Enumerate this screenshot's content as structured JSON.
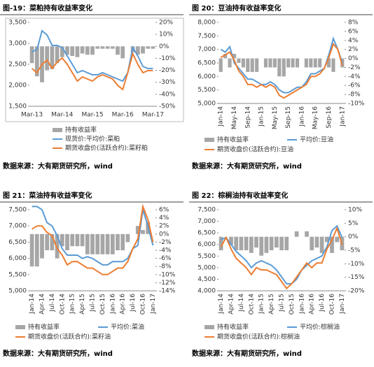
{
  "chart_data": [
    {
      "type": "combo",
      "title": "图-19：菜粕持有收益率变化",
      "source": "数据来源：大有期货研究所，wind",
      "categories": [
        "Mar-13",
        null,
        null,
        null,
        null,
        null,
        "Mar-14",
        null,
        null,
        null,
        null,
        null,
        "Mar-15",
        null,
        null,
        null,
        null,
        null,
        "Mar-16",
        null,
        null,
        null,
        null,
        null,
        "Mar-17"
      ],
      "ylim": [
        1500,
        3500
      ],
      "yticks": [
        {
          "value": 1500,
          "label": "1,500"
        },
        {
          "value": 2000,
          "label": "2,000"
        },
        {
          "value": 2500,
          "label": "2,500"
        },
        {
          "value": 3000,
          "label": "3,000"
        },
        {
          "value": 3500,
          "label": "3,500"
        }
      ],
      "y2lim": [
        -50,
        20
      ],
      "y2ticks": [
        {
          "value": -50,
          "label": "-50%"
        },
        {
          "value": -40,
          "label": "-40%"
        },
        {
          "value": -30,
          "label": "-30%"
        },
        {
          "value": -20,
          "label": "-20%"
        },
        {
          "value": -10,
          "label": "-10%"
        },
        {
          "value": 0,
          "label": "0%"
        },
        {
          "value": 10,
          "label": "10%"
        },
        {
          "value": 20,
          "label": "20%"
        }
      ],
      "series": [
        {
          "name": "持有收益率",
          "color": "#a6a6a6",
          "axis": "y2",
          "values": [
            -14,
            -25,
            -30,
            -20,
            -19,
            -14,
            -9,
            -7,
            -8,
            -9,
            -6,
            -7,
            -7,
            -2,
            -2,
            -2,
            -2,
            -7,
            -10,
            0,
            -5,
            -7,
            -6,
            -2,
            -2
          ]
        },
        {
          "name": "现货价:平均价:菜粕",
          "color": "#5b9bd5",
          "values": [
            2800,
            2850,
            3300,
            3200,
            2950,
            2950,
            2900,
            2700,
            2500,
            2300,
            2350,
            2300,
            2250,
            2250,
            2300,
            2250,
            2200,
            2150,
            2100,
            2300,
            2900,
            2700,
            2450,
            2400,
            2400
          ]
        },
        {
          "name": "期货收盘价(活跃合约):菜籽粕",
          "color": "#ed7d31",
          "values": [
            2400,
            2300,
            2500,
            2600,
            2400,
            2550,
            2650,
            2500,
            2300,
            2100,
            2200,
            2150,
            2100,
            2200,
            2250,
            2200,
            2150,
            2000,
            1900,
            2300,
            2750,
            2500,
            2300,
            2350,
            2350
          ]
        }
      ]
    },
    {
      "type": "combo",
      "title": "图 20：豆油持有收益率变化",
      "source": "数据来源：大有期货研究所，wind",
      "categories": [
        "Jan-14",
        null,
        null,
        "May-14",
        null,
        null,
        "Sep-14",
        null,
        null,
        "Jan-15",
        null,
        null,
        "May-15",
        null,
        null,
        "Sep-15",
        null,
        null,
        "Jan-16",
        null,
        null,
        "May-16",
        null,
        null,
        "Sep-16",
        null,
        null,
        "Jan-17"
      ],
      "ylim": [
        5000,
        8000
      ],
      "yticks": [
        {
          "value": 5000,
          "label": "5,000"
        },
        {
          "value": 5500,
          "label": "5,500"
        },
        {
          "value": 6000,
          "label": "6,000"
        },
        {
          "value": 6500,
          "label": "6,500"
        },
        {
          "value": 7000,
          "label": "7,000"
        },
        {
          "value": 7500,
          "label": "7,500"
        },
        {
          "value": 8000,
          "label": "8,000"
        }
      ],
      "y2lim": [
        -10,
        8
      ],
      "y2ticks": [
        {
          "value": -10,
          "label": "-10%"
        },
        {
          "value": -8,
          "label": "-8%"
        },
        {
          "value": -6,
          "label": "-6%"
        },
        {
          "value": -4,
          "label": "-4%"
        },
        {
          "value": -2,
          "label": "-2%"
        },
        {
          "value": 0,
          "label": "0%"
        },
        {
          "value": 2,
          "label": "2%"
        },
        {
          "value": 4,
          "label": "4%"
        },
        {
          "value": 6,
          "label": "6%"
        },
        {
          "value": 8,
          "label": "8%"
        }
      ],
      "series": [
        {
          "name": "持有收益率",
          "color": "#a6a6a6",
          "axis": "y2",
          "values": [
            -3,
            1,
            -2,
            1,
            -1,
            -2,
            -3,
            -3,
            -3,
            0,
            -2,
            -2,
            -2,
            -4,
            -4,
            -2,
            -2,
            -2,
            0,
            -2,
            -2,
            -2,
            -2,
            0,
            -2,
            -3,
            0,
            -2
          ]
        },
        {
          "name": "平均价:豆油",
          "color": "#5b9bd5",
          "values": [
            7000,
            6900,
            7100,
            6500,
            6300,
            6100,
            5900,
            5900,
            5800,
            5700,
            5700,
            5800,
            5700,
            5500,
            5400,
            5400,
            5500,
            5600,
            5600,
            5800,
            6100,
            6100,
            6200,
            6300,
            6800,
            7400,
            7000,
            6500
          ]
        },
        {
          "name": "期货收盘价(活跃合约):豆油",
          "color": "#ed7d31",
          "values": [
            6700,
            6800,
            6900,
            6600,
            6200,
            6000,
            5700,
            5700,
            5600,
            5700,
            5600,
            5700,
            5600,
            5300,
            5200,
            5300,
            5400,
            5500,
            5600,
            5700,
            6000,
            6000,
            6100,
            6300,
            6700,
            7200,
            7000,
            6400
          ]
        }
      ]
    },
    {
      "type": "combo",
      "title": "图 21：菜油持有收益率变化",
      "source": "数据来源：大有期货研究所，wind",
      "categories": [
        "Jan-14",
        null,
        "Apr-14",
        null,
        "Jul-14",
        null,
        "Oct-14",
        null,
        "Jan-15",
        null,
        "Apr-15",
        null,
        "Jul-15",
        null,
        "Oct-15",
        null,
        "Jan-16",
        null,
        "Apr-16",
        null,
        "Jul-16",
        null,
        "Oct-16",
        null,
        "Jan-17"
      ],
      "ylim": [
        5000,
        7500
      ],
      "yticks": [
        {
          "value": 5000,
          "label": "5,000"
        },
        {
          "value": 5500,
          "label": "5,500"
        },
        {
          "value": 6000,
          "label": "6,000"
        },
        {
          "value": 6500,
          "label": "6,500"
        },
        {
          "value": 7000,
          "label": "7,000"
        },
        {
          "value": 7500,
          "label": "7,500"
        }
      ],
      "y2lim": [
        -14,
        6
      ],
      "y2ticks": [
        {
          "value": -14,
          "label": "-14%"
        },
        {
          "value": -12,
          "label": "-12%"
        },
        {
          "value": -10,
          "label": "-10%"
        },
        {
          "value": -8,
          "label": "-8%"
        },
        {
          "value": -6,
          "label": "-6%"
        },
        {
          "value": -4,
          "label": "-4%"
        },
        {
          "value": -2,
          "label": "-2%"
        },
        {
          "value": 0,
          "label": "0%"
        },
        {
          "value": 2,
          "label": "2%"
        },
        {
          "value": 4,
          "label": "4%"
        },
        {
          "value": 6,
          "label": "6%"
        }
      ],
      "series": [
        {
          "name": "持有收益率",
          "color": "#a6a6a6",
          "axis": "y2",
          "values": [
            -8,
            -8,
            -6,
            -4,
            -4,
            -6,
            -3,
            -4,
            -3,
            -3,
            -3,
            -5,
            -5,
            -5,
            -5,
            -5,
            -5,
            -4,
            -4,
            -2,
            0,
            2,
            1,
            3,
            0
          ]
        },
        {
          "name": "平均价:菜油",
          "color": "#5b9bd5",
          "values": [
            7600,
            7600,
            7500,
            7100,
            7000,
            6700,
            6300,
            6100,
            6100,
            6100,
            6000,
            6050,
            6000,
            5900,
            5800,
            5800,
            5900,
            5900,
            5900,
            6000,
            6300,
            6400,
            7500,
            7000,
            6400
          ]
        },
        {
          "name": "期货收盘价(活跃合约):菜籽油",
          "color": "#ed7d31",
          "values": [
            6900,
            7000,
            7000,
            6800,
            6700,
            6300,
            6100,
            5800,
            5900,
            5900,
            5800,
            5700,
            5700,
            5600,
            5500,
            5500,
            5600,
            5700,
            5700,
            5900,
            6300,
            6600,
            7600,
            7200,
            6500
          ]
        }
      ]
    },
    {
      "type": "combo",
      "title": "图 22：棕榈油持有收益率变化",
      "source": "数据来源：大有期货研究所，wind",
      "categories": [
        "Jan-14",
        null,
        "Apr-14",
        null,
        "Jul-14",
        null,
        "Oct-14",
        null,
        "Jan-15",
        null,
        "Apr-15",
        null,
        "Jul-15",
        null,
        "Oct-15",
        null,
        "Jan-16",
        null,
        "Apr-16",
        null,
        "Jul-16",
        null,
        "Oct-16",
        null,
        "Jan-17"
      ],
      "ylim": [
        4000,
        7500
      ],
      "yticks": [
        {
          "value": 4000,
          "label": "4,000"
        },
        {
          "value": 4500,
          "label": "4,500"
        },
        {
          "value": 5000,
          "label": "5,000"
        },
        {
          "value": 5500,
          "label": "5,500"
        },
        {
          "value": 6000,
          "label": "6,000"
        },
        {
          "value": 6500,
          "label": "6,500"
        },
        {
          "value": 7000,
          "label": "7,000"
        },
        {
          "value": 7500,
          "label": "7,500"
        }
      ],
      "y2lim": [
        -20,
        10
      ],
      "y2ticks": [
        {
          "value": -20,
          "label": "-20%"
        },
        {
          "value": -15,
          "label": "-15%"
        },
        {
          "value": -10,
          "label": "-10%"
        },
        {
          "value": -5,
          "label": "-5%"
        },
        {
          "value": 0,
          "label": "0%"
        },
        {
          "value": 5,
          "label": "5%"
        },
        {
          "value": 10,
          "label": "10%"
        }
      ],
      "series": [
        {
          "name": "持有收益率",
          "color": "#a6a6a6",
          "axis": "y2",
          "values": [
            -5,
            0,
            -3,
            -5,
            -5,
            -5,
            -6,
            -4,
            -7,
            -6,
            -5,
            -4,
            -5,
            -5,
            0,
            2,
            0,
            2,
            -5,
            -4,
            -6,
            -2,
            -6,
            -2,
            -5
          ]
        },
        {
          "name": "平均价:棕榈油",
          "color": "#5b9bd5",
          "values": [
            6200,
            6300,
            6000,
            5700,
            5500,
            5300,
            5000,
            5200,
            5300,
            5200,
            5100,
            4900,
            4600,
            4300,
            4300,
            4500,
            4900,
            5100,
            5300,
            5400,
            5500,
            5900,
            6600,
            6800,
            6300
          ]
        },
        {
          "name": "期货收盘价(活跃合约):棕榈油",
          "color": "#ed7d31",
          "values": [
            5900,
            6300,
            5800,
            5400,
            5200,
            5000,
            4700,
            5000,
            4900,
            4900,
            4800,
            4700,
            4400,
            4100,
            4300,
            4600,
            4900,
            5200,
            5000,
            5200,
            5200,
            5800,
            6200,
            6700,
            6000
          ]
        }
      ]
    }
  ]
}
